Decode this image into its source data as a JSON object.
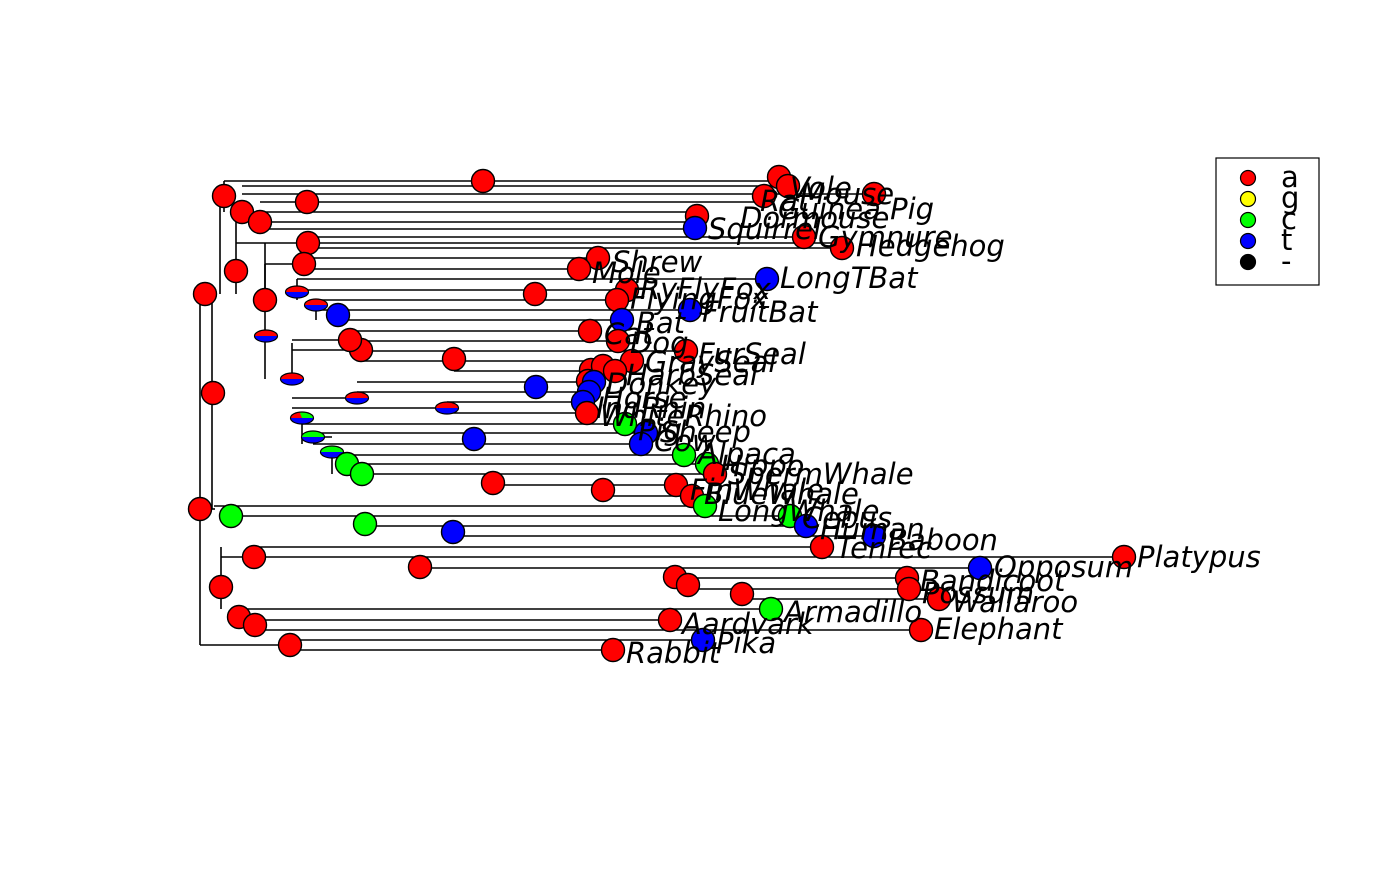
{
  "colors": {
    "a": "#ff0000",
    "g": "#ffff00",
    "c": "#00ff00",
    "t": "#0000ff",
    "-": "#000000"
  },
  "legend": [
    {
      "label": "a",
      "color": "#ff0000"
    },
    {
      "label": "g",
      "color": "#ffff00"
    },
    {
      "label": "c",
      "color": "#00ff00"
    },
    {
      "label": "t",
      "color": "#0000ff"
    },
    {
      "label": "-",
      "color": "#000000"
    }
  ],
  "taxa": [
    {
      "name": "Vole",
      "state": "a"
    },
    {
      "name": "Mouse",
      "state": "a"
    },
    {
      "name": "Rat",
      "state": "a"
    },
    {
      "name": "Guinea Pig",
      "state": "a"
    },
    {
      "name": "Dormouse",
      "state": "a"
    },
    {
      "name": "Squirrel",
      "state": "t"
    },
    {
      "name": "Gymnure",
      "state": "a"
    },
    {
      "name": "Hedgehog",
      "state": "a"
    },
    {
      "name": "Shrew",
      "state": "a"
    },
    {
      "name": "Mole",
      "state": "a"
    },
    {
      "name": "LongTBat",
      "state": "t"
    },
    {
      "name": "RyFlyFox",
      "state": "a"
    },
    {
      "name": "FlyingFox",
      "state": "a"
    },
    {
      "name": "FruitBat",
      "state": "t"
    },
    {
      "name": "Bat",
      "state": "t"
    },
    {
      "name": "Cat",
      "state": "a"
    },
    {
      "name": "Dog",
      "state": "a"
    },
    {
      "name": "FurSeal",
      "state": "a"
    },
    {
      "name": "GraySeal",
      "state": "a"
    },
    {
      "name": "HarbSeal",
      "state": "a"
    },
    {
      "name": "Donkey",
      "state": "t"
    },
    {
      "name": "Horse",
      "state": "t"
    },
    {
      "name": "IndRhin",
      "state": "t"
    },
    {
      "name": "WhiteRhino",
      "state": "a"
    },
    {
      "name": "Pig",
      "state": "c"
    },
    {
      "name": "Sheep",
      "state": "t"
    },
    {
      "name": "Cow",
      "state": "t"
    },
    {
      "name": "Alpaca",
      "state": "c"
    },
    {
      "name": "Hippo",
      "state": "c"
    },
    {
      "name": "SpermWhale",
      "state": "a"
    },
    {
      "name": "FinWhale",
      "state": "a"
    },
    {
      "name": "BlueWhale",
      "state": "a"
    },
    {
      "name": "LongWhale",
      "state": "c"
    },
    {
      "name": "Cebus",
      "state": "c"
    },
    {
      "name": "Human",
      "state": "t"
    },
    {
      "name": "Baboon",
      "state": "t"
    },
    {
      "name": "Tenrec",
      "state": "a"
    },
    {
      "name": "Platypus",
      "state": "a"
    },
    {
      "name": "Opposum",
      "state": "t"
    },
    {
      "name": "Bandicoot",
      "state": "a"
    },
    {
      "name": "Possum",
      "state": "a"
    },
    {
      "name": "Wallaroo",
      "state": "a"
    },
    {
      "name": "Armadillo",
      "state": "c"
    },
    {
      "name": "Aardvark",
      "state": "a"
    },
    {
      "name": "Elephant",
      "state": "a"
    },
    {
      "name": "Pika",
      "state": "t"
    },
    {
      "name": "Rabbit",
      "state": "a"
    }
  ],
  "internal_nodes": [
    {
      "state": "a"
    },
    {
      "state": "a"
    },
    {
      "state": "a"
    },
    {
      "state": "a"
    },
    {
      "state": "a"
    },
    {
      "state": "a"
    },
    {
      "state": "a"
    },
    {
      "state": "a"
    },
    {
      "state": "a"
    },
    {
      "state": "a"
    },
    {
      "state": "a"
    },
    {
      "state": "a"
    },
    {
      "state": "a"
    },
    {
      "state": "a"
    },
    {
      "state": "a"
    },
    {
      "state": "at"
    },
    {
      "state": "at"
    },
    {
      "state": "t"
    },
    {
      "state": "at"
    },
    {
      "state": "at"
    },
    {
      "state": "a"
    },
    {
      "state": "a"
    },
    {
      "state": "a"
    },
    {
      "state": "t"
    },
    {
      "state": "at"
    },
    {
      "state": "at"
    },
    {
      "state": "cta"
    },
    {
      "state": "ct"
    },
    {
      "state": "ct"
    },
    {
      "state": "t"
    },
    {
      "state": "c"
    },
    {
      "state": "c"
    },
    {
      "state": "a"
    },
    {
      "state": "a"
    },
    {
      "state": "a"
    },
    {
      "state": "c"
    },
    {
      "state": "c"
    },
    {
      "state": "t"
    },
    {
      "state": "a"
    },
    {
      "state": "a"
    },
    {
      "state": "a"
    },
    {
      "state": "a"
    },
    {
      "state": "a"
    },
    {
      "state": "a"
    },
    {
      "state": "a"
    },
    {
      "state": "a"
    },
    {
      "state": "a"
    }
  ]
}
